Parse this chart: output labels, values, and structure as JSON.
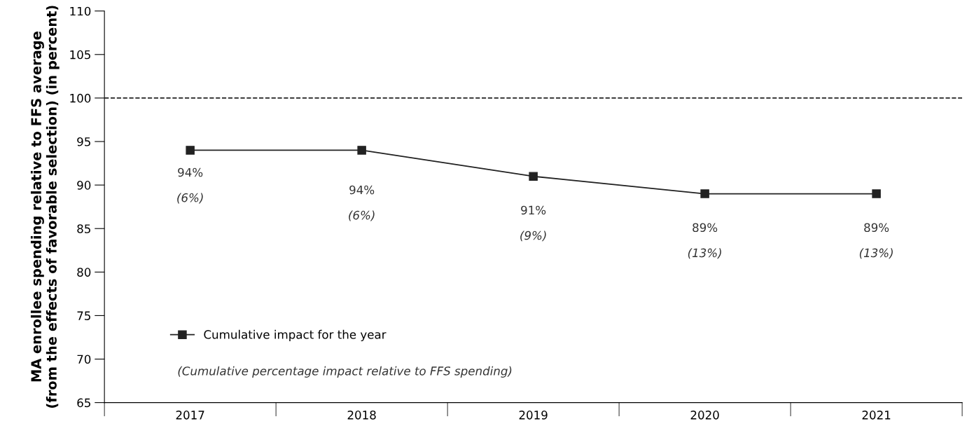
{
  "chart_data": {
    "type": "line",
    "ylabel": "MA enrollee spending relative to FFS average\n(from the effects of favorable selection) (in percent)",
    "categories": [
      "2017",
      "2018",
      "2019",
      "2020",
      "2021"
    ],
    "series": [
      {
        "name": "Cumulative impact for the year",
        "color": "#222222",
        "values": [
          94,
          94,
          91,
          89,
          89
        ],
        "value_labels": [
          "94%\n(6%)",
          "94%\n(6%)",
          "91%\n(9%)",
          "89%\n(13%)",
          "89%\n(13%)"
        ]
      }
    ],
    "ylim": [
      65,
      110
    ],
    "yticks": [
      65,
      70,
      75,
      80,
      85,
      90,
      95,
      100,
      105,
      110
    ],
    "ref_lines": [
      {
        "axis": "y",
        "value": 100,
        "color": "#222222",
        "line_style": "dashed"
      }
    ],
    "annotations": [
      "(Cumulative percentage impact relative to FFS spending)"
    ],
    "marker": "square",
    "line_style": "solid",
    "grid": false,
    "legend": "bottom left"
  }
}
